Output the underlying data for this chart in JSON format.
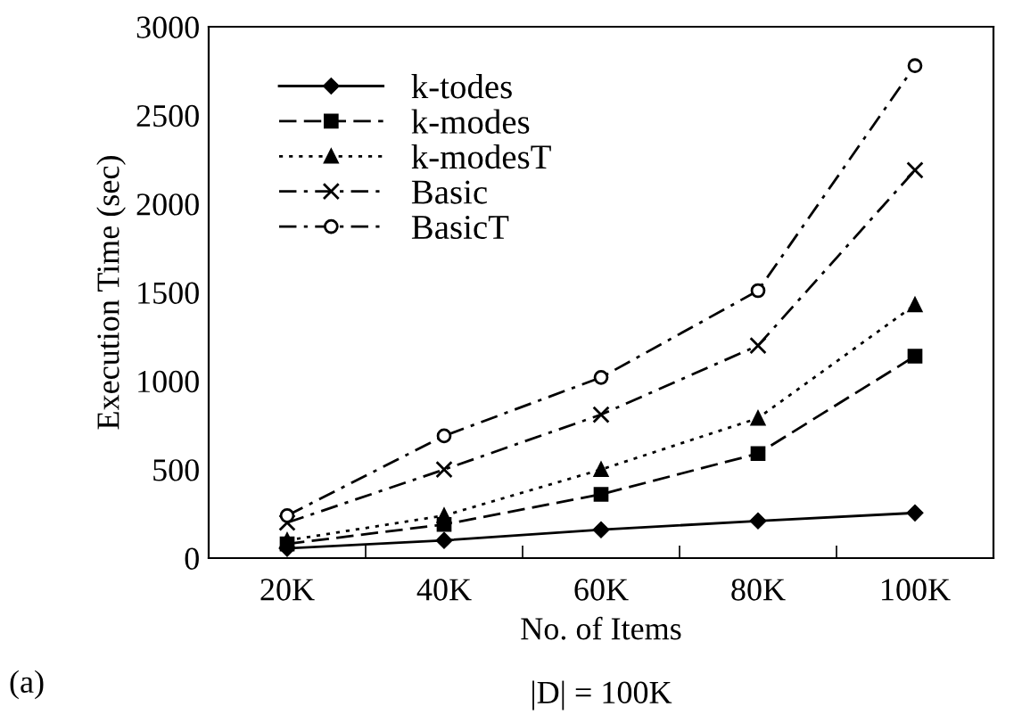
{
  "chart_data": {
    "type": "line",
    "xlabel": "No. of Items",
    "ylabel": "Execution Time (sec)",
    "categories": [
      "20K",
      "40K",
      "60K",
      "80K",
      "100K"
    ],
    "series": [
      {
        "name": "k-todes",
        "color": "#000000",
        "marker": "diamond",
        "line_style": "solid",
        "values": [
          55,
          100,
          160,
          210,
          255
        ]
      },
      {
        "name": "k-modes",
        "color": "#000000",
        "marker": "square",
        "line_style": "dashed",
        "values": [
          80,
          190,
          360,
          590,
          1140
        ]
      },
      {
        "name": "k-modesT",
        "color": "#000000",
        "marker": "triangle",
        "line_style": "dotted",
        "values": [
          100,
          240,
          500,
          790,
          1430
        ]
      },
      {
        "name": "Basic",
        "color": "#000000",
        "marker": "cross",
        "line_style": "dashdot",
        "values": [
          200,
          500,
          810,
          1200,
          2190
        ]
      },
      {
        "name": "BasicT",
        "color": "#000000",
        "marker": "circle",
        "line_style": "dashdot",
        "values": [
          240,
          690,
          1020,
          1510,
          2780
        ]
      }
    ],
    "ylim": [
      0,
      3000
    ],
    "yticks": [
      0,
      500,
      1000,
      1500,
      2000,
      2500,
      3000
    ],
    "grid": false,
    "legend": "top left",
    "annotations": [
      "(a)",
      "|D| = 100K"
    ]
  }
}
